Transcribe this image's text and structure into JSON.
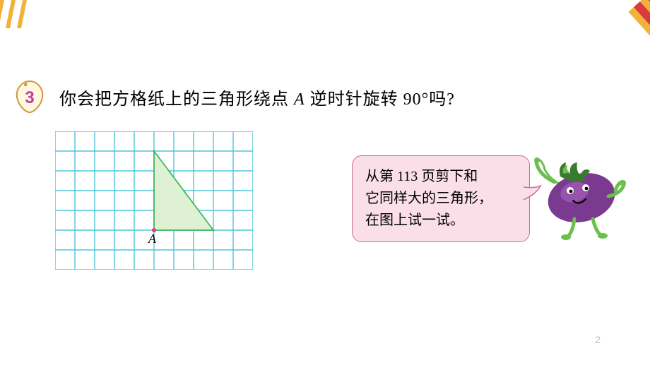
{
  "question": {
    "number": "3",
    "text_before_A": "你会把方格纸上的三角形绕点 ",
    "point_label": "A",
    "text_after_A": " 逆时针旋转 90°吗?"
  },
  "grid": {
    "cols": 10,
    "rows": 7,
    "cell": 28,
    "line_color": "#4fc6d9",
    "background": "#ffffff",
    "point_A": {
      "col": 5,
      "row": 5,
      "label": "A",
      "point_color": "#e23a7a"
    },
    "triangle": {
      "fill": "#dff1d3",
      "stroke": "#3fb85f",
      "vertices": [
        {
          "col": 5,
          "row": 1
        },
        {
          "col": 8,
          "row": 5
        },
        {
          "col": 5,
          "row": 5
        }
      ]
    }
  },
  "speech": {
    "line1": "从第 113 页剪下和",
    "line2": "它同样大的三角形，",
    "line3": "在图上试一试。",
    "bubble_fill": "#fadfe8",
    "bubble_border": "#d26a9c",
    "tail_fill": "#fadfe8",
    "tail_border": "#d26a9c"
  },
  "mascot": {
    "body_color": "#7a3a8f",
    "highlight_color": "#a35fb8",
    "leaf_color": "#3a7a2f",
    "leaf_light": "#6bbf4f",
    "limb_color": "#6bbf4f"
  },
  "decor": {
    "tl_colors": [
      "#f2b23a",
      "#ffffff"
    ],
    "tr_colors": [
      "#d93a3a",
      "#f2b23a"
    ]
  },
  "badge": {
    "outline": "#c99a3d",
    "fill": "#fff7de",
    "number_color": "#c73aa0"
  },
  "page_number": "2"
}
